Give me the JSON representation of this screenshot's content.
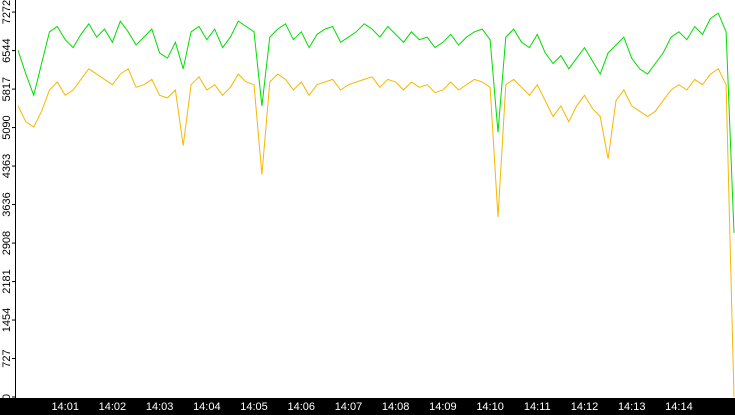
{
  "chart_data": {
    "type": "line",
    "categories": [
      null,
      null,
      null,
      null,
      null,
      null,
      "14:01",
      null,
      null,
      null,
      null,
      null,
      "14:02",
      null,
      null,
      null,
      null,
      null,
      "14:03",
      null,
      null,
      null,
      null,
      null,
      "14:04",
      null,
      null,
      null,
      null,
      null,
      "14:05",
      null,
      null,
      null,
      null,
      null,
      "14:06",
      null,
      null,
      null,
      null,
      null,
      "14:07",
      null,
      null,
      null,
      null,
      null,
      "14:08",
      null,
      null,
      null,
      null,
      null,
      "14:09",
      null,
      null,
      null,
      null,
      null,
      "14:10",
      null,
      null,
      null,
      null,
      null,
      "14:11",
      null,
      null,
      null,
      null,
      null,
      "14:12",
      null,
      null,
      null,
      null,
      null,
      "14:13",
      null,
      null,
      null,
      null,
      null,
      "14:14",
      null,
      null,
      null,
      null,
      null,
      null,
      null
    ],
    "series": [
      {
        "color": "#00dd00",
        "values": [
          6550,
          6100,
          5700,
          6300,
          6900,
          7000,
          6750,
          6600,
          6850,
          7050,
          6800,
          6950,
          6700,
          7100,
          6900,
          6650,
          6800,
          6950,
          6500,
          6400,
          6700,
          6200,
          6900,
          7000,
          6750,
          6950,
          6600,
          6800,
          7100,
          7000,
          6900,
          5500,
          6800,
          6950,
          7050,
          6750,
          6900,
          6600,
          6850,
          6950,
          7000,
          6700,
          6800,
          6900,
          7050,
          6950,
          6800,
          7000,
          6850,
          6700,
          6900,
          6750,
          6800,
          6600,
          6700,
          6850,
          6650,
          6800,
          6900,
          6950,
          6750,
          5000,
          6800,
          6950,
          6700,
          6600,
          6850,
          6500,
          6300,
          6450,
          6200,
          6400,
          6600,
          6350,
          6100,
          6500,
          6650,
          6800,
          6400,
          6200,
          6100,
          6300,
          6500,
          6800,
          6900,
          6750,
          7000,
          6850,
          7150,
          7250,
          6900,
          3100
        ]
      },
      {
        "color": "#f5b800",
        "values": [
          5500,
          5200,
          5100,
          5400,
          5800,
          5950,
          5700,
          5800,
          6000,
          6200,
          6100,
          6000,
          5900,
          6100,
          6200,
          5850,
          5900,
          6000,
          5700,
          5650,
          5800,
          4750,
          5900,
          6050,
          5800,
          5900,
          5700,
          5850,
          6100,
          5950,
          5900,
          4200,
          5950,
          6100,
          6000,
          5800,
          5950,
          5700,
          5900,
          5950,
          6000,
          5800,
          5900,
          5950,
          6000,
          6050,
          5850,
          6000,
          5950,
          5800,
          5950,
          5850,
          5900,
          5750,
          5800,
          5950,
          5800,
          5900,
          6000,
          5950,
          5850,
          3400,
          5900,
          6000,
          5850,
          5700,
          5900,
          5600,
          5300,
          5500,
          5200,
          5500,
          5700,
          5450,
          5300,
          4500,
          5600,
          5800,
          5500,
          5400,
          5300,
          5400,
          5600,
          5800,
          5900,
          5800,
          6000,
          5900,
          6100,
          6200,
          5900,
          0
        ]
      }
    ],
    "ylim": [
      0,
      7500
    ],
    "yticks": [
      0,
      727,
      1454,
      2181,
      2908,
      3636,
      4363,
      5090,
      5817,
      6544,
      7272
    ]
  }
}
